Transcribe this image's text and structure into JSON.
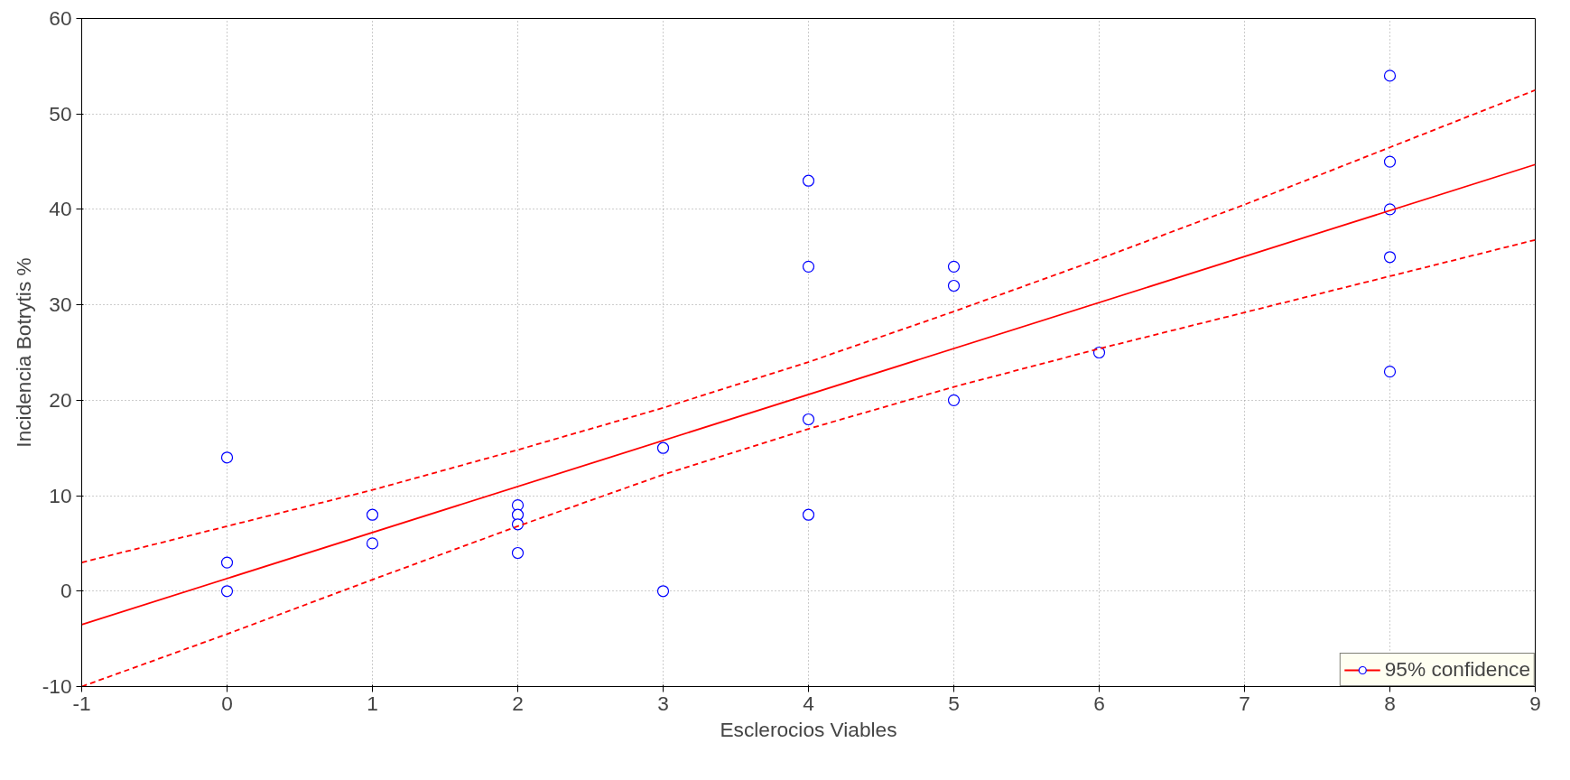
{
  "chart_data": {
    "type": "scatter",
    "xlabel": "Esclerocios Viables",
    "ylabel": "Incidencia Botrytis %",
    "xlim": [
      -1,
      9
    ],
    "ylim": [
      -10,
      60
    ],
    "xticks": [
      -1,
      0,
      1,
      2,
      3,
      4,
      5,
      6,
      7,
      8,
      9
    ],
    "yticks": [
      -10,
      0,
      10,
      20,
      30,
      40,
      50,
      60
    ],
    "grid": true,
    "legend": "bottom right",
    "series": [
      {
        "name": "95% confidence",
        "color": "#0000ff",
        "marker": "circle",
        "x": [
          0,
          0,
          0,
          1,
          1,
          2,
          2,
          2,
          2,
          3,
          3,
          4,
          4,
          4,
          4,
          5,
          5,
          5,
          6,
          8,
          8,
          8,
          8,
          8
        ],
        "values": [
          14,
          3,
          0,
          8,
          5,
          9,
          8,
          7,
          4,
          15,
          0,
          43,
          34,
          18,
          8,
          34,
          32,
          20,
          25,
          54,
          45,
          40,
          35,
          23
        ]
      },
      {
        "type": "line",
        "color": "#ff0000",
        "line_style": "solid",
        "x": [
          -1,
          9
        ],
        "values": [
          -3.5,
          44.7
        ]
      },
      {
        "type": "line",
        "color": "#ff0000",
        "line_style": "dashed",
        "x": [
          -1,
          0,
          1,
          2,
          3,
          4,
          5,
          6,
          7,
          8,
          9
        ],
        "values": [
          3,
          6.8,
          10.6,
          14.8,
          19.2,
          24,
          29.3,
          34.8,
          40.5,
          46.5,
          52.5
        ]
      },
      {
        "type": "line",
        "color": "#ff0000",
        "line_style": "dashed",
        "x": [
          -1,
          0,
          1,
          2,
          3,
          4,
          5,
          6,
          7,
          8,
          9
        ],
        "values": [
          -10,
          -4.5,
          1.2,
          6.8,
          12.2,
          17,
          21.4,
          25.4,
          29.2,
          33,
          36.8
        ]
      }
    ]
  }
}
